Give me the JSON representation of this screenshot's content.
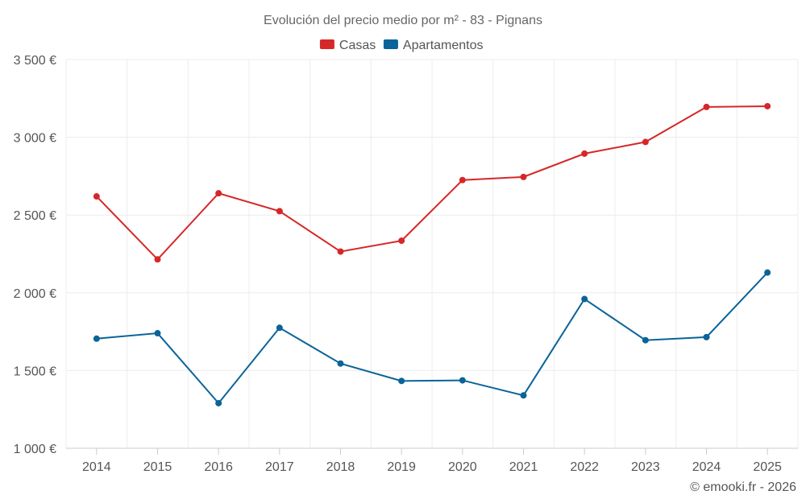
{
  "chart_data": {
    "type": "line",
    "title": "Evolución del precio medio por m² - 83 - Pignans",
    "categories": [
      "2014",
      "2015",
      "2016",
      "2017",
      "2018",
      "2019",
      "2020",
      "2021",
      "2022",
      "2023",
      "2024",
      "2025"
    ],
    "series": [
      {
        "name": "Casas",
        "color": "#d62728",
        "values": [
          2620,
          2215,
          2640,
          2525,
          2265,
          2335,
          2725,
          2745,
          2895,
          2970,
          3195,
          3200
        ]
      },
      {
        "name": "Apartamentos",
        "color": "#0a6399",
        "values": [
          1705,
          1740,
          1290,
          1775,
          1545,
          1433,
          1437,
          1340,
          1960,
          1695,
          1715,
          2130
        ]
      }
    ],
    "ylim": [
      1000,
      3500
    ],
    "yticks": [
      1000,
      1500,
      2000,
      2500,
      3000,
      3500
    ],
    "ytick_labels": [
      "1 000 €",
      "1 500 €",
      "2 000 €",
      "2 500 €",
      "3 000 €",
      "3 500 €"
    ],
    "grid": true,
    "legend_position": "top-center",
    "xlabel": "",
    "ylabel": ""
  },
  "credit": "© emooki.fr - 2026"
}
